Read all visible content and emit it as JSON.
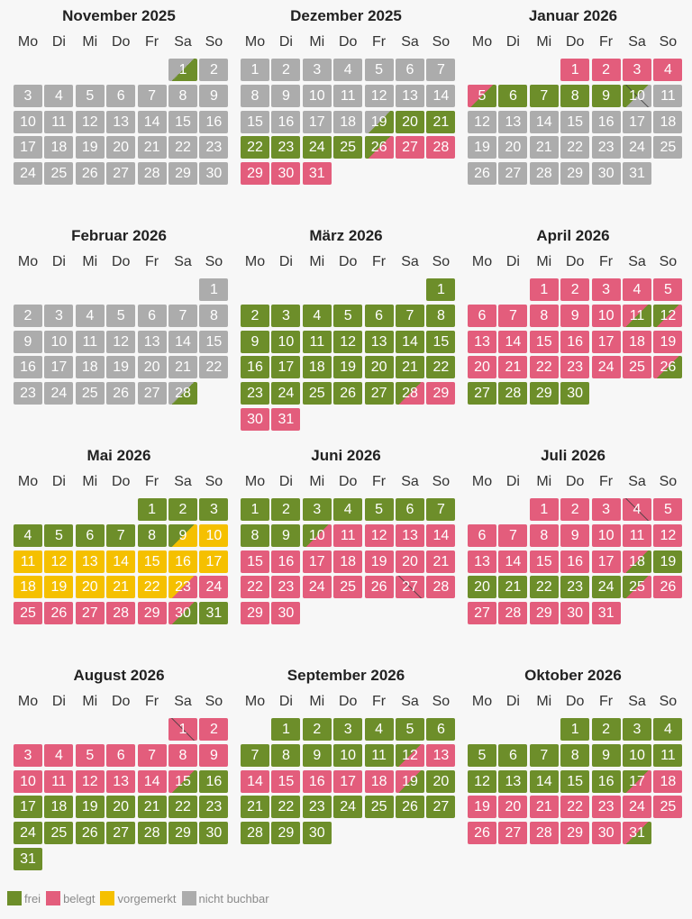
{
  "colors": {
    "frei": "#6d8e2a",
    "belegt": "#e35d7c",
    "vorgemerkt": "#f5c000",
    "nicht_buchbar": "#acacac"
  },
  "weekday_labels": [
    "Mo",
    "Di",
    "Mi",
    "Do",
    "Fr",
    "Sa",
    "So"
  ],
  "legend": [
    {
      "key": "frei",
      "label": "frei"
    },
    {
      "key": "belegt",
      "label": "belegt"
    },
    {
      "key": "vorgemerkt",
      "label": "vorgemerkt"
    },
    {
      "key": "nicht_buchbar",
      "label": "nicht buchbar"
    }
  ],
  "months": [
    {
      "title": "November 2025",
      "first_weekday": 6,
      "days": 30,
      "default": "N",
      "ranges": [],
      "transitions": {
        "1": [
          "N",
          "F"
        ]
      },
      "marks": []
    },
    {
      "title": "Dezember 2025",
      "first_weekday": 1,
      "days": 31,
      "default": "N",
      "ranges": [
        [
          20,
          25,
          "F"
        ],
        [
          27,
          31,
          "B"
        ]
      ],
      "transitions": {
        "19": [
          "N",
          "F"
        ],
        "26": [
          "F",
          "B"
        ]
      },
      "marks": []
    },
    {
      "title": "Januar 2026",
      "first_weekday": 4,
      "days": 31,
      "default": "N",
      "ranges": [
        [
          1,
          4,
          "B"
        ],
        [
          6,
          9,
          "F"
        ]
      ],
      "transitions": {
        "5": [
          "B",
          "F"
        ],
        "10": [
          "F",
          "N"
        ]
      },
      "marks": [
        "10"
      ]
    },
    {
      "title": "Februar 2026",
      "first_weekday": 7,
      "days": 28,
      "default": "N",
      "ranges": [],
      "transitions": {
        "28": [
          "N",
          "F"
        ]
      },
      "marks": []
    },
    {
      "title": "März 2026",
      "first_weekday": 7,
      "days": 31,
      "default": "F",
      "ranges": [
        [
          29,
          31,
          "B"
        ]
      ],
      "transitions": {
        "28": [
          "F",
          "B"
        ]
      },
      "marks": []
    },
    {
      "title": "April 2026",
      "first_weekday": 3,
      "days": 30,
      "default": "B",
      "ranges": [
        [
          27,
          30,
          "F"
        ]
      ],
      "transitions": {
        "11": [
          "B",
          "F"
        ],
        "12": [
          "F",
          "B"
        ],
        "26": [
          "B",
          "F"
        ]
      },
      "marks": []
    },
    {
      "title": "Mai 2026",
      "first_weekday": 5,
      "days": 31,
      "default": "F",
      "ranges": [
        [
          10,
          22,
          "V"
        ],
        [
          24,
          29,
          "B"
        ]
      ],
      "transitions": {
        "9": [
          "F",
          "V"
        ],
        "23": [
          "V",
          "B"
        ],
        "30": [
          "B",
          "F"
        ]
      },
      "marks": []
    },
    {
      "title": "Juni 2026",
      "first_weekday": 1,
      "days": 30,
      "default": "B",
      "ranges": [
        [
          1,
          9,
          "F"
        ]
      ],
      "transitions": {
        "10": [
          "F",
          "B"
        ]
      },
      "marks": [
        "27"
      ]
    },
    {
      "title": "Juli 2026",
      "first_weekday": 3,
      "days": 31,
      "default": "B",
      "ranges": [
        [
          19,
          24,
          "F"
        ]
      ],
      "transitions": {
        "18": [
          "B",
          "F"
        ],
        "25": [
          "F",
          "B"
        ]
      },
      "marks": [
        "4"
      ]
    },
    {
      "title": "August 2026",
      "first_weekday": 6,
      "days": 31,
      "default": "B",
      "ranges": [
        [
          16,
          31,
          "F"
        ]
      ],
      "transitions": {
        "15": [
          "B",
          "F"
        ]
      },
      "marks": [
        "1"
      ]
    },
    {
      "title": "September 2026",
      "first_weekday": 2,
      "days": 30,
      "default": "F",
      "ranges": [
        [
          13,
          18,
          "B"
        ]
      ],
      "transitions": {
        "12": [
          "F",
          "B"
        ],
        "19": [
          "B",
          "F"
        ]
      },
      "marks": []
    },
    {
      "title": "Oktober 2026",
      "first_weekday": 4,
      "days": 31,
      "default": "F",
      "ranges": [
        [
          18,
          30,
          "B"
        ]
      ],
      "transitions": {
        "17": [
          "F",
          "B"
        ],
        "31": [
          "B",
          "F"
        ]
      },
      "marks": []
    }
  ]
}
